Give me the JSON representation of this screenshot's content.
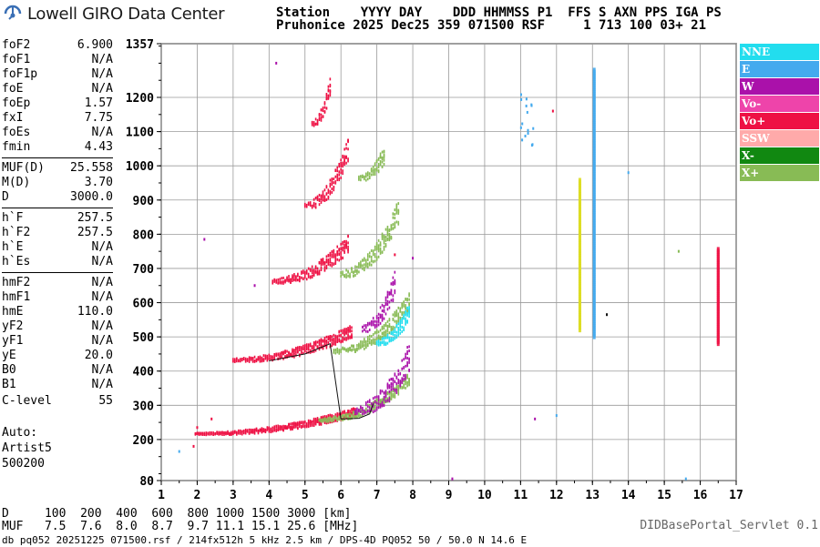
{
  "logo": {
    "text": "Lowell GIRO Data Center",
    "icon": "giro-logo-icon"
  },
  "header": {
    "line1": "Station    YYYY DAY    DDD HHMMSS P1  FFS S AXN PPS IGA PS",
    "line2": "Pruhonice 2025 Dec25 359 071500 RSF     1 713 100 03+ 21"
  },
  "params": [
    {
      "k": "foF2",
      "v": "6.900"
    },
    {
      "k": "foF1",
      "v": "N/A"
    },
    {
      "k": "foF1p",
      "v": "N/A"
    },
    {
      "k": "foE",
      "v": "N/A"
    },
    {
      "k": "foEp",
      "v": "1.57"
    },
    {
      "k": "fxI",
      "v": "7.75"
    },
    {
      "k": "foEs",
      "v": "N/A"
    },
    {
      "k": "fmin",
      "v": "4.43"
    },
    {
      "k": "MUF(D)",
      "v": "25.558"
    },
    {
      "k": "M(D)",
      "v": "3.70"
    },
    {
      "k": "D",
      "v": "3000.0"
    },
    {
      "k": "h`F",
      "v": "257.5"
    },
    {
      "k": "h`F2",
      "v": "257.5"
    },
    {
      "k": "h`E",
      "v": "N/A"
    },
    {
      "k": "h`Es",
      "v": "N/A"
    },
    {
      "k": "hmF2",
      "v": "N/A"
    },
    {
      "k": "hmF1",
      "v": "N/A"
    },
    {
      "k": "hmE",
      "v": "110.0"
    },
    {
      "k": "yF2",
      "v": "N/A"
    },
    {
      "k": "yF1",
      "v": "N/A"
    },
    {
      "k": "yE",
      "v": "20.0"
    },
    {
      "k": "B0",
      "v": "N/A"
    },
    {
      "k": "B1",
      "v": "N/A"
    },
    {
      "k": "C-level",
      "v": "55"
    }
  ],
  "auto": {
    "line1": "Auto:",
    "line2": "Artist5",
    "line3": "500200"
  },
  "legend": [
    {
      "label": "NNE",
      "color": "#22ddee"
    },
    {
      "label": "E",
      "color": "#44aaee"
    },
    {
      "label": "W",
      "color": "#aa11aa"
    },
    {
      "label": "Vo-",
      "color": "#ee44aa"
    },
    {
      "label": "Vo+",
      "color": "#ee1144"
    },
    {
      "label": "SSW",
      "color": "#ffaaaa"
    },
    {
      "label": "X-",
      "color": "#118811"
    },
    {
      "label": "X+",
      "color": "#88bb55"
    }
  ],
  "footer": {
    "line1": "D     100  200  400  600  800 1000 1500 3000 [km]",
    "line2": "MUF   7.5  7.6  8.0  8.7  9.7 11.1 15.1 25.6 [MHz]",
    "line3": "db pq052 20251225 071500.rsf / 214fx512h 5 kHz 2.5 km / DPS-4D PQ052 50 / 50.0 N 14.6 E",
    "servlet": "DIDBasePortal_Servlet 0.1"
  },
  "chart_data": {
    "type": "scatter",
    "title": "",
    "xlabel": "",
    "ylabel": "",
    "xlim": [
      1,
      17
    ],
    "ylim": [
      80,
      1357
    ],
    "x_ticks": [
      "1",
      "2",
      "3",
      "4",
      "5",
      "6",
      "7",
      "8",
      "9",
      "10",
      "11",
      "12",
      "13",
      "14",
      "15",
      "16",
      "17"
    ],
    "y_ticks": [
      "80",
      "200",
      "300",
      "400",
      "500",
      "600",
      "700",
      "800",
      "900",
      "1000",
      "1100",
      "1200",
      "1357"
    ],
    "grid": true,
    "legend_position": "right",
    "series": [
      {
        "name": "Vo+",
        "color": "#ee1144",
        "traces": [
          {
            "x0": 1.95,
            "x1": 6.4,
            "h0": 215,
            "h1": 275,
            "w": 14
          },
          {
            "x0": 3.0,
            "x1": 6.3,
            "h0": 430,
            "h1": 510,
            "w": 22
          },
          {
            "x0": 4.1,
            "x1": 6.2,
            "h0": 660,
            "h1": 760,
            "w": 30
          },
          {
            "x0": 5.0,
            "x1": 6.2,
            "h0": 880,
            "h1": 1030,
            "w": 40
          },
          {
            "x0": 5.2,
            "x1": 5.7,
            "h0": 1120,
            "h1": 1220,
            "w": 30
          }
        ]
      },
      {
        "name": "X+",
        "color": "#88bb55",
        "traces": [
          {
            "x0": 5.4,
            "x1": 7.9,
            "h0": 255,
            "h1": 370,
            "w": 20
          },
          {
            "x0": 5.8,
            "x1": 7.9,
            "h0": 455,
            "h1": 590,
            "w": 30
          },
          {
            "x0": 6.0,
            "x1": 7.6,
            "h0": 680,
            "h1": 850,
            "w": 40
          },
          {
            "x0": 6.5,
            "x1": 7.2,
            "h0": 960,
            "h1": 1020,
            "w": 30
          }
        ]
      },
      {
        "name": "W",
        "color": "#aa11aa",
        "traces": [
          {
            "x0": 6.4,
            "x1": 7.9,
            "h0": 280,
            "h1": 420,
            "w": 50
          },
          {
            "x0": 6.6,
            "x1": 7.5,
            "h0": 520,
            "h1": 640,
            "w": 40
          }
        ]
      },
      {
        "name": "NNE",
        "color": "#22ddee",
        "traces": [
          {
            "x0": 7.0,
            "x1": 7.9,
            "h0": 480,
            "h1": 560,
            "w": 30
          }
        ]
      }
    ],
    "vertical_lines": [
      {
        "f": 13.05,
        "h0": 500,
        "h1": 1285,
        "color": "#44aaee"
      },
      {
        "f": 16.5,
        "h0": 480,
        "h1": 760,
        "color": "#ee1144"
      },
      {
        "f": 12.65,
        "h0": 520,
        "h1": 960,
        "color": "#dddd22"
      }
    ],
    "trace_line": {
      "f": [
        4.0,
        5.0,
        5.7,
        6.0,
        6.5,
        6.8,
        6.9
      ],
      "h": [
        430,
        450,
        480,
        260,
        262,
        275,
        305
      ]
    }
  }
}
